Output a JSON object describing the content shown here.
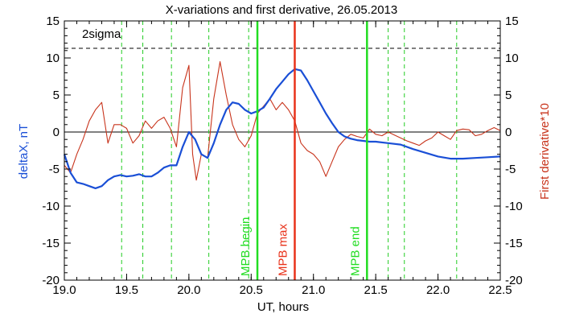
{
  "chart_data": {
    "type": "line",
    "title": "X-variations and first derivative, 26.05.2013",
    "xlabel": "UT, hours",
    "ylabel_left": "deltaX, nT",
    "ylabel_right": "First derivative*10",
    "xlim": [
      19.0,
      22.5
    ],
    "ylim": [
      -20,
      15
    ],
    "x_ticks": [
      "19.0",
      "19.5",
      "20.0",
      "20.5",
      "21.0",
      "21.5",
      "22.0",
      "22.5"
    ],
    "y_ticks_left": [
      "-20",
      "-15",
      "-10",
      "-5",
      "0",
      "5",
      "10",
      "15"
    ],
    "y_ticks_right": [
      "-20",
      "-15",
      "-10",
      "-5",
      "0",
      "5",
      "10",
      "15"
    ],
    "sigma_label": "2sigma",
    "sigma_level": 11.3,
    "colors": {
      "deltaX": "#1a4fd6",
      "derivative": "#c8341c",
      "mpb_max": "#e8321a",
      "mpb_edges": "#22dd22",
      "dashed_green": "#22cc22"
    },
    "dashed_lines_x": [
      19.46,
      19.63,
      19.86,
      20.16,
      20.48,
      21.6,
      21.73,
      22.15
    ],
    "vertical_markers": [
      {
        "label": "MPB begin",
        "x": 20.55
      },
      {
        "label": "MPB max",
        "x": 20.85
      },
      {
        "label": "MPB end",
        "x": 21.43
      }
    ],
    "series": [
      {
        "name": "deltaX",
        "x": [
          19.0,
          19.05,
          19.1,
          19.15,
          19.2,
          19.25,
          19.3,
          19.35,
          19.4,
          19.45,
          19.5,
          19.55,
          19.6,
          19.65,
          19.7,
          19.75,
          19.8,
          19.85,
          19.9,
          19.95,
          20.0,
          20.05,
          20.1,
          20.15,
          20.2,
          20.25,
          20.3,
          20.35,
          20.4,
          20.45,
          20.5,
          20.55,
          20.6,
          20.65,
          20.7,
          20.75,
          20.8,
          20.85,
          20.9,
          20.95,
          21.0,
          21.05,
          21.1,
          21.15,
          21.2,
          21.25,
          21.3,
          21.35,
          21.4,
          21.45,
          21.5,
          21.6,
          21.7,
          21.8,
          21.9,
          22.0,
          22.1,
          22.2,
          22.3,
          22.4,
          22.5
        ],
        "y": [
          -3.0,
          -5.5,
          -6.8,
          -7.0,
          -7.3,
          -7.6,
          -7.3,
          -6.5,
          -6.0,
          -5.8,
          -6.0,
          -5.9,
          -5.7,
          -6.0,
          -6.0,
          -5.5,
          -4.8,
          -4.5,
          -4.5,
          -2.0,
          0.0,
          -1.0,
          -3.0,
          -3.5,
          -1.5,
          1.0,
          3.0,
          4.0,
          3.8,
          3.0,
          2.5,
          2.8,
          3.3,
          4.5,
          5.8,
          6.8,
          7.8,
          8.5,
          8.3,
          7.0,
          5.5,
          4.0,
          2.5,
          1.2,
          0.0,
          -0.6,
          -0.9,
          -1.1,
          -1.2,
          -1.3,
          -1.3,
          -1.5,
          -1.7,
          -2.3,
          -2.8,
          -3.3,
          -3.6,
          -3.6,
          -3.5,
          -3.4,
          -3.3
        ]
      },
      {
        "name": "derivative",
        "x": [
          19.0,
          19.05,
          19.1,
          19.15,
          19.2,
          19.25,
          19.3,
          19.35,
          19.4,
          19.45,
          19.5,
          19.55,
          19.6,
          19.65,
          19.7,
          19.75,
          19.8,
          19.85,
          19.9,
          19.95,
          20.0,
          20.03,
          20.06,
          20.1,
          20.15,
          20.2,
          20.25,
          20.3,
          20.35,
          20.4,
          20.45,
          20.5,
          20.55,
          20.6,
          20.65,
          20.7,
          20.75,
          20.8,
          20.85,
          20.9,
          20.95,
          21.0,
          21.05,
          21.1,
          21.15,
          21.2,
          21.25,
          21.3,
          21.35,
          21.4,
          21.45,
          21.5,
          21.55,
          21.6,
          21.65,
          21.7,
          21.75,
          21.8,
          21.85,
          21.9,
          21.95,
          22.0,
          22.05,
          22.1,
          22.15,
          22.2,
          22.25,
          22.3,
          22.35,
          22.4,
          22.45,
          22.5
        ],
        "y": [
          -4.5,
          -5.5,
          -3.0,
          -1.0,
          1.5,
          3.0,
          4.0,
          -1.5,
          1.0,
          1.0,
          0.5,
          -1.5,
          -0.5,
          1.5,
          0.5,
          1.5,
          2.0,
          0.5,
          -2.0,
          6.0,
          9.0,
          -3.0,
          -6.5,
          -3.0,
          -3.5,
          4.5,
          9.5,
          5.0,
          1.0,
          -1.0,
          -2.0,
          -0.5,
          2.5,
          3.5,
          4.5,
          3.0,
          4.0,
          3.0,
          1.5,
          -1.5,
          -2.5,
          -3.0,
          -4.0,
          -6.0,
          -4.0,
          -2.0,
          -1.0,
          -0.3,
          -0.6,
          -0.8,
          0.4,
          -0.3,
          -0.5,
          0.0,
          -0.4,
          -0.8,
          -1.2,
          -1.5,
          -1.8,
          -1.2,
          -0.8,
          0.0,
          -0.5,
          -1.0,
          0.2,
          0.4,
          0.3,
          -0.5,
          -0.3,
          0.2,
          0.6,
          0.2
        ]
      }
    ]
  }
}
